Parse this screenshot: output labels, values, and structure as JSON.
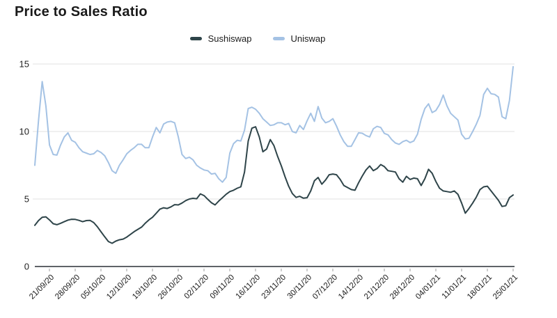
{
  "title": "Price to Sales Ratio",
  "legend": [
    {
      "label": "Sushiswap",
      "color": "#2e4449"
    },
    {
      "label": "Uniswap",
      "color": "#a4c2e4"
    }
  ],
  "colors": {
    "background": "#ffffff",
    "title_text": "#1a1a1a",
    "axis_label_text": "#222222",
    "gridline": "#e0e0e0",
    "zero_axis": "#5f6368",
    "tick_mark": "#9e9e9e",
    "sushiswap_line": "#2e4449",
    "uniswap_line": "#a4c2e4"
  },
  "chart_data": {
    "type": "line",
    "title": "Price to Sales Ratio",
    "xlabel": "",
    "ylabel": "",
    "ylim": [
      0,
      15
    ],
    "yticks": [
      0,
      5,
      10,
      15
    ],
    "grid": true,
    "legend_position": "top-center",
    "x_labels": [
      "21/09/20",
      "28/09/20",
      "05/10/20",
      "12/10/20",
      "19/10/20",
      "26/10/20",
      "02/11/20",
      "09/11/20",
      "16/11/20",
      "23/11/20",
      "30/11/20",
      "07/12/20",
      "14/12/20",
      "21/12/20",
      "28/12/20",
      "04/01/21",
      "11/01/21",
      "18/01/21",
      "25/01/21"
    ],
    "label_start_index": 4,
    "label_every": 7,
    "series": [
      {
        "name": "Sushiswap",
        "color": "#2e4449",
        "values": [
          3.05,
          3.4,
          3.65,
          3.68,
          3.45,
          3.17,
          3.1,
          3.2,
          3.32,
          3.44,
          3.5,
          3.49,
          3.42,
          3.32,
          3.4,
          3.42,
          3.25,
          2.95,
          2.57,
          2.2,
          1.85,
          1.72,
          1.88,
          1.98,
          2.03,
          2.18,
          2.38,
          2.58,
          2.75,
          2.92,
          3.2,
          3.45,
          3.65,
          3.95,
          4.25,
          4.35,
          4.3,
          4.42,
          4.58,
          4.56,
          4.7,
          4.88,
          5.0,
          5.05,
          5.02,
          5.38,
          5.25,
          4.98,
          4.72,
          4.56,
          4.85,
          5.1,
          5.35,
          5.55,
          5.65,
          5.8,
          5.9,
          7.0,
          9.3,
          10.25,
          10.35,
          9.6,
          8.5,
          8.7,
          9.4,
          8.95,
          8.15,
          7.45,
          6.65,
          5.95,
          5.4,
          5.12,
          5.2,
          5.06,
          5.1,
          5.6,
          6.35,
          6.6,
          6.1,
          6.4,
          6.8,
          6.85,
          6.8,
          6.45,
          6.0,
          5.85,
          5.7,
          5.65,
          6.2,
          6.7,
          7.15,
          7.45,
          7.1,
          7.25,
          7.55,
          7.4,
          7.1,
          7.05,
          7.0,
          6.5,
          6.25,
          6.68,
          6.45,
          6.55,
          6.5,
          6.0,
          6.5,
          7.2,
          6.9,
          6.3,
          5.8,
          5.6,
          5.55,
          5.5,
          5.6,
          5.35,
          4.7,
          3.95,
          4.3,
          4.7,
          5.15,
          5.7,
          5.9,
          5.95,
          5.6,
          5.25,
          4.9,
          4.45,
          4.5,
          5.1,
          5.3
        ]
      },
      {
        "name": "Uniswap",
        "color": "#a4c2e4",
        "values": [
          7.5,
          10.8,
          13.7,
          11.9,
          9.0,
          8.3,
          8.25,
          9.0,
          9.6,
          9.9,
          9.35,
          9.2,
          8.8,
          8.5,
          8.4,
          8.3,
          8.35,
          8.6,
          8.45,
          8.2,
          7.7,
          7.1,
          6.9,
          7.5,
          7.9,
          8.35,
          8.6,
          8.8,
          9.05,
          9.05,
          8.8,
          8.8,
          9.6,
          10.3,
          9.9,
          10.55,
          10.7,
          10.75,
          10.65,
          9.6,
          8.3,
          8.0,
          8.1,
          7.9,
          7.5,
          7.3,
          7.15,
          7.1,
          6.85,
          6.9,
          6.5,
          6.25,
          6.6,
          8.4,
          9.1,
          9.35,
          9.3,
          10.1,
          11.7,
          11.8,
          11.65,
          11.35,
          10.95,
          10.7,
          10.45,
          10.5,
          10.65,
          10.65,
          10.5,
          10.6,
          10.0,
          9.9,
          10.45,
          10.15,
          10.8,
          11.35,
          10.75,
          11.85,
          11.0,
          10.65,
          10.75,
          10.95,
          10.4,
          9.75,
          9.25,
          8.9,
          8.9,
          9.4,
          9.9,
          9.87,
          9.7,
          9.6,
          10.2,
          10.38,
          10.3,
          9.86,
          9.75,
          9.4,
          9.15,
          9.05,
          9.25,
          9.35,
          9.18,
          9.3,
          9.8,
          10.9,
          11.7,
          12.05,
          11.4,
          11.55,
          12.0,
          12.7,
          11.9,
          11.35,
          11.1,
          10.85,
          9.8,
          9.45,
          9.5,
          10.0,
          10.55,
          11.2,
          12.75,
          13.2,
          12.8,
          12.75,
          12.55,
          11.1,
          10.95,
          12.3,
          14.8
        ]
      }
    ]
  }
}
